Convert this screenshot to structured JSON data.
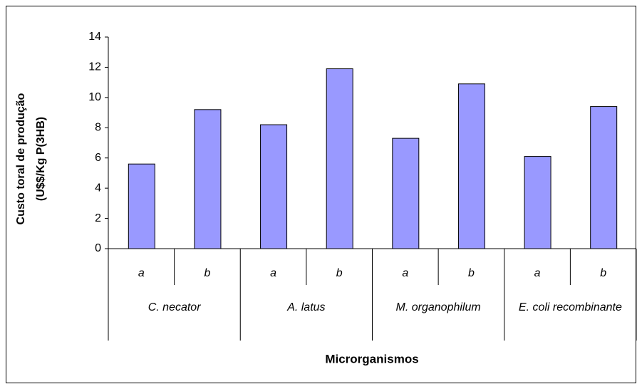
{
  "chart_data": {
    "type": "bar",
    "categories": [
      "a",
      "b",
      "a",
      "b",
      "a",
      "b",
      "a",
      "b"
    ],
    "groups": [
      "C. necator",
      "A. latus",
      "M. organophilum",
      "E. coli recombinante"
    ],
    "values": [
      5.6,
      9.2,
      8.2,
      11.9,
      7.3,
      10.9,
      6.1,
      9.4
    ],
    "color": "#9999ff",
    "ylim": [
      0,
      14
    ],
    "yticks": [
      0,
      2,
      4,
      6,
      8,
      10,
      12,
      14
    ],
    "ylabel": [
      "Custo toral de produção",
      "(U$$/Kg P(3HB)"
    ],
    "xlabel": "Microrganismos"
  }
}
